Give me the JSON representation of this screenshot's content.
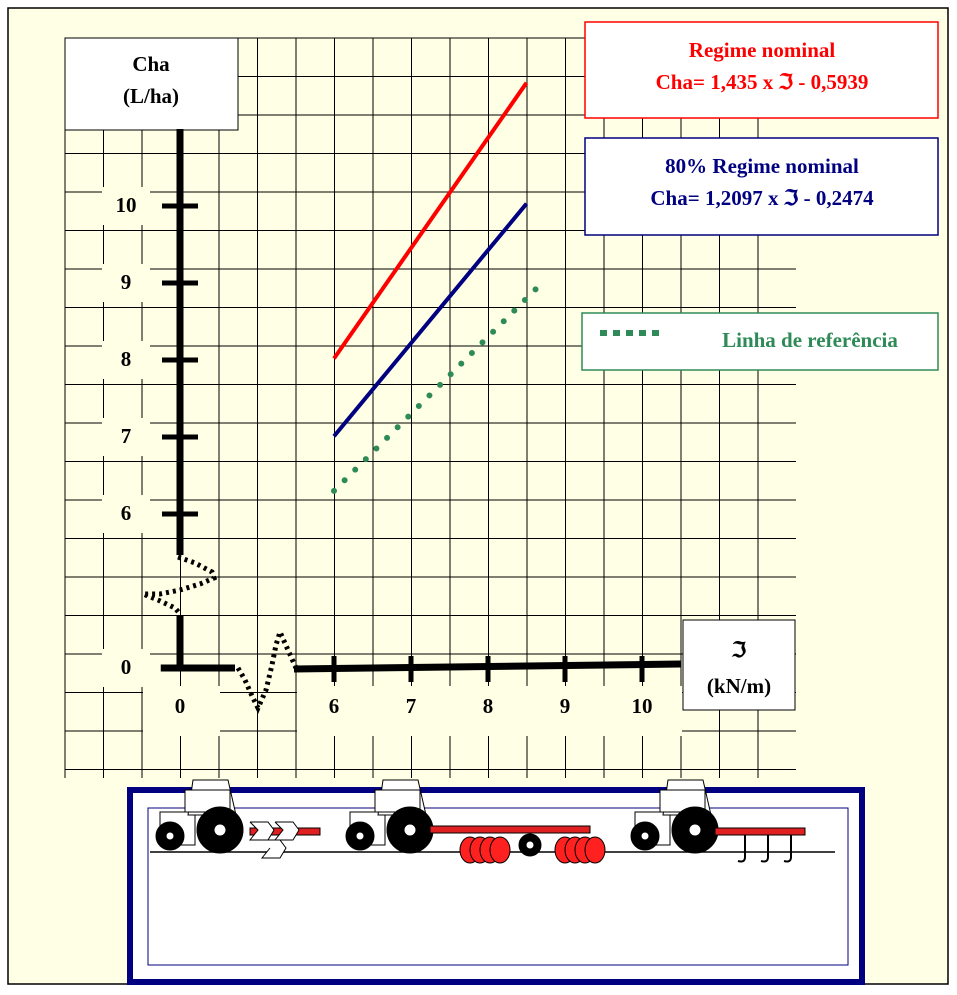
{
  "chart_data": {
    "type": "line",
    "ylabel": "Cha",
    "ylabel_unit": "(L/ha)",
    "xlabel": "ℑ",
    "xlabel_unit": "(kN/m)",
    "xlim": [
      -0.25,
      10.5
    ],
    "xticks": [
      0,
      6,
      7,
      8,
      9,
      10
    ],
    "xbreak": [
      0,
      6
    ],
    "ylim": [
      0,
      11
    ],
    "yticks": [
      0,
      6,
      7,
      8,
      9,
      10
    ],
    "ybreak": [
      0,
      6
    ],
    "grid": true,
    "series": [
      {
        "name": "Regime nominal",
        "equation": "Cha= 1,435 x ℑ - 0,5939",
        "color": "#ff0000",
        "style": "solid",
        "x": [
          6,
          8.5
        ],
        "values": [
          8.02,
          11.6
        ]
      },
      {
        "name": "80% Regime nominal",
        "equation": "Cha= 1,2097 x ℑ - 0,2474",
        "color": "#000080",
        "style": "solid",
        "x": [
          6,
          8.5
        ],
        "values": [
          7.01,
          10.03
        ]
      },
      {
        "name": "Linha de referência",
        "color": "#2e8b57",
        "style": "dotted",
        "x": [
          6,
          8.7
        ],
        "values": [
          6.3,
          9.0
        ]
      }
    ]
  }
}
